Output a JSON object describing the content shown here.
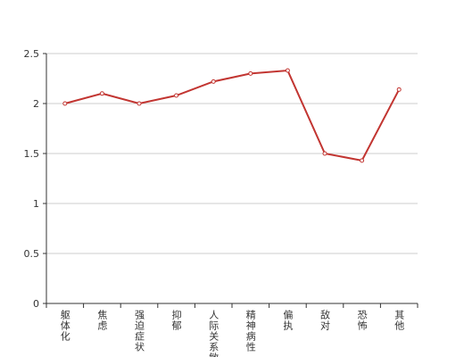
{
  "chart_data": {
    "type": "line",
    "categories": [
      "躯体化",
      "焦虑",
      "强迫症状",
      "抑郁",
      "人际关系敏感",
      "精神病性",
      "偏执",
      "敌对",
      "恐怖",
      "其他"
    ],
    "values": [
      2.0,
      2.1,
      2.0,
      2.08,
      2.22,
      2.3,
      2.33,
      1.5,
      1.43,
      2.14
    ],
    "color": "#c23531",
    "ylim": [
      0,
      2.5
    ],
    "yticks": [
      0,
      0.5,
      1,
      1.5,
      2,
      2.5
    ],
    "grid": true
  }
}
